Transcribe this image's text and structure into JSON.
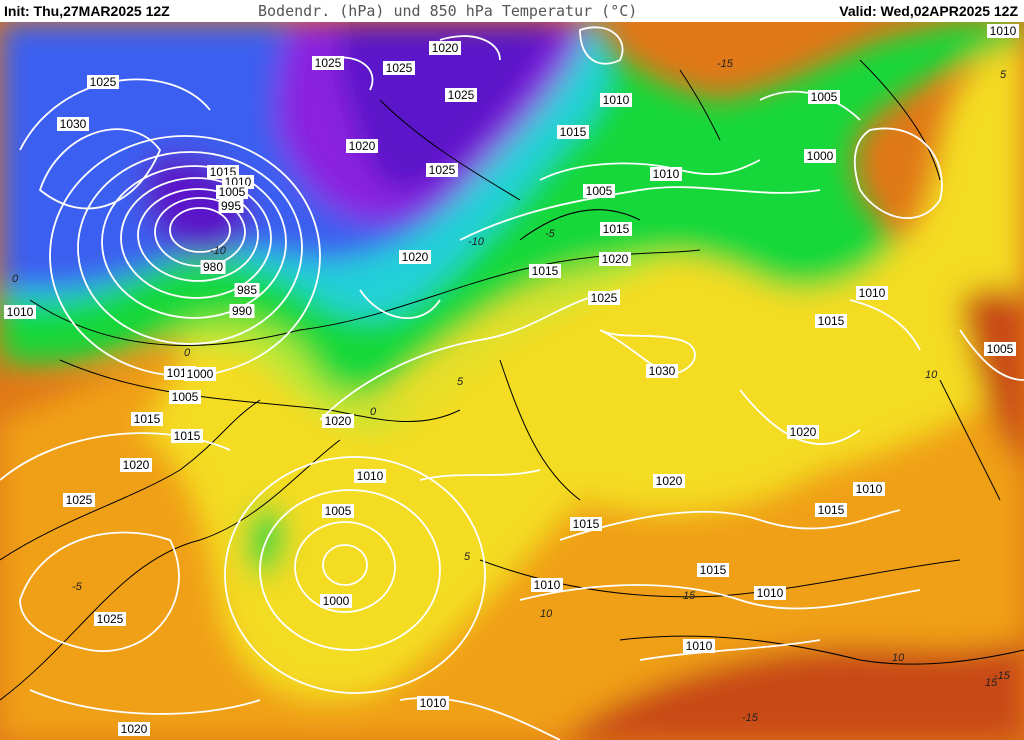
{
  "header": {
    "init": "Init: Thu,27MAR2025 12Z",
    "title": "Bodendr. (hPa) und 850 hPa Temperatur (°C)",
    "valid": "Valid: Wed,02APR2025 12Z"
  },
  "colors": {
    "deep_violet": "#5a12c8",
    "purple": "#8a20e0",
    "blue": "#3a5ef0",
    "light_blue": "#36a6f0",
    "cyan": "#22d0d8",
    "green": "#12d83a",
    "lime": "#b8e838",
    "yellow": "#f4dc20",
    "orange": "#f0a018",
    "dark_orange": "#e07818",
    "red": "#c84818",
    "isobar": "#ffffff",
    "isotherm": "#000000"
  },
  "isobar_labels": [
    "1020",
    "1025",
    "1025",
    "1025",
    "1010",
    "1025",
    "1030",
    "1015",
    "1010",
    "1005",
    "995",
    "980",
    "985",
    "990",
    "1020",
    "1025",
    "1015",
    "1010",
    "1005",
    "1000",
    "1005",
    "1015",
    "1010",
    "1015",
    "1020",
    "1025",
    "1020",
    "1030",
    "1010",
    "1000",
    "1005",
    "1010",
    "1015",
    "1020",
    "1020",
    "1015",
    "1010",
    "1005",
    "1000",
    "1010",
    "1015",
    "1025",
    "1020",
    "1010",
    "1015",
    "1015",
    "1010",
    "1025",
    "1020",
    "1020",
    "1015",
    "1010",
    "1010",
    "1010",
    "1005"
  ],
  "isotherm_labels": [
    "-15",
    "-10",
    "-5",
    "0",
    "5",
    "10",
    "15",
    "-15",
    "-10",
    "-5",
    "0",
    "5",
    "10",
    "-15",
    "5",
    "10",
    "15",
    "0"
  ]
}
